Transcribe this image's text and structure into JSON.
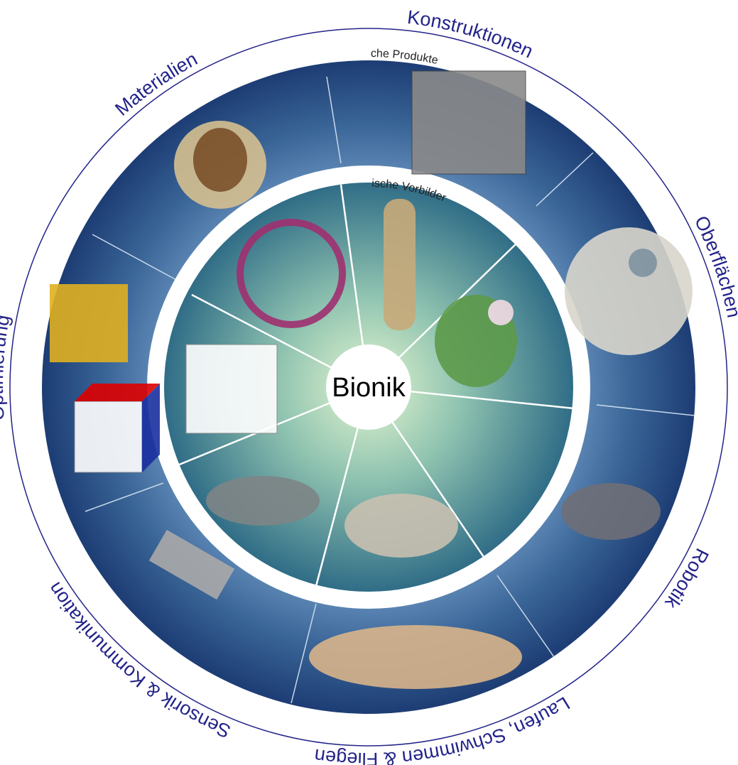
{
  "center": "Bionik",
  "inner_ring_label": "biologische Vorbilder",
  "outer_ring_label": "bionische Produkte",
  "categories": [
    "Konstruktionen",
    "Oberflächen",
    "Robotik",
    "Laufen, Schwimmen & Fliegen",
    "Sensorik & Kommunikation",
    "Optimierung",
    "Materialien"
  ]
}
